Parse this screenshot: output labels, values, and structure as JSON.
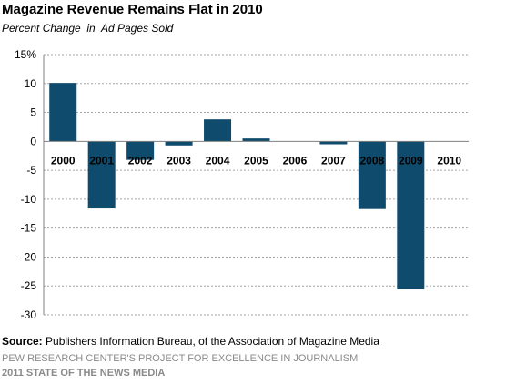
{
  "title": "Magazine Revenue Remains Flat in 2010",
  "subtitle": "Percent Change  in  Ad Pages Sold",
  "source_label": "Source:",
  "source_text": " Publishers Information Bureau, of the Association of Magazine Media",
  "org_line": "PEW RESEARCH CENTER'S PROJECT FOR EXCELLENCE IN JOURNALISM",
  "report_line": "2011 STATE OF THE NEWS MEDIA",
  "colors": {
    "bar": "#0f4b6c",
    "grid": "#a6a6a6",
    "axis": "#808080"
  },
  "chart_data": {
    "type": "bar",
    "categories": [
      "2000",
      "2001",
      "2002",
      "2003",
      "2004",
      "2005",
      "2006",
      "2007",
      "2008",
      "2009",
      "2010"
    ],
    "values": [
      10.1,
      -11.6,
      -3.2,
      -0.7,
      3.8,
      0.5,
      0.0,
      -0.5,
      -11.7,
      -25.6,
      0.0
    ],
    "ylim": [
      -30,
      15
    ],
    "yticks": [
      -30,
      -25,
      -20,
      -15,
      -10,
      -5,
      0,
      5,
      10,
      15
    ],
    "ytick_labels": [
      "-30",
      "-25",
      "-20",
      "-15",
      "-10",
      "-5",
      "0",
      "5",
      "10",
      "15%"
    ],
    "grid": true,
    "title": "Magazine Revenue Remains Flat in 2010",
    "xlabel": "",
    "ylabel": ""
  }
}
